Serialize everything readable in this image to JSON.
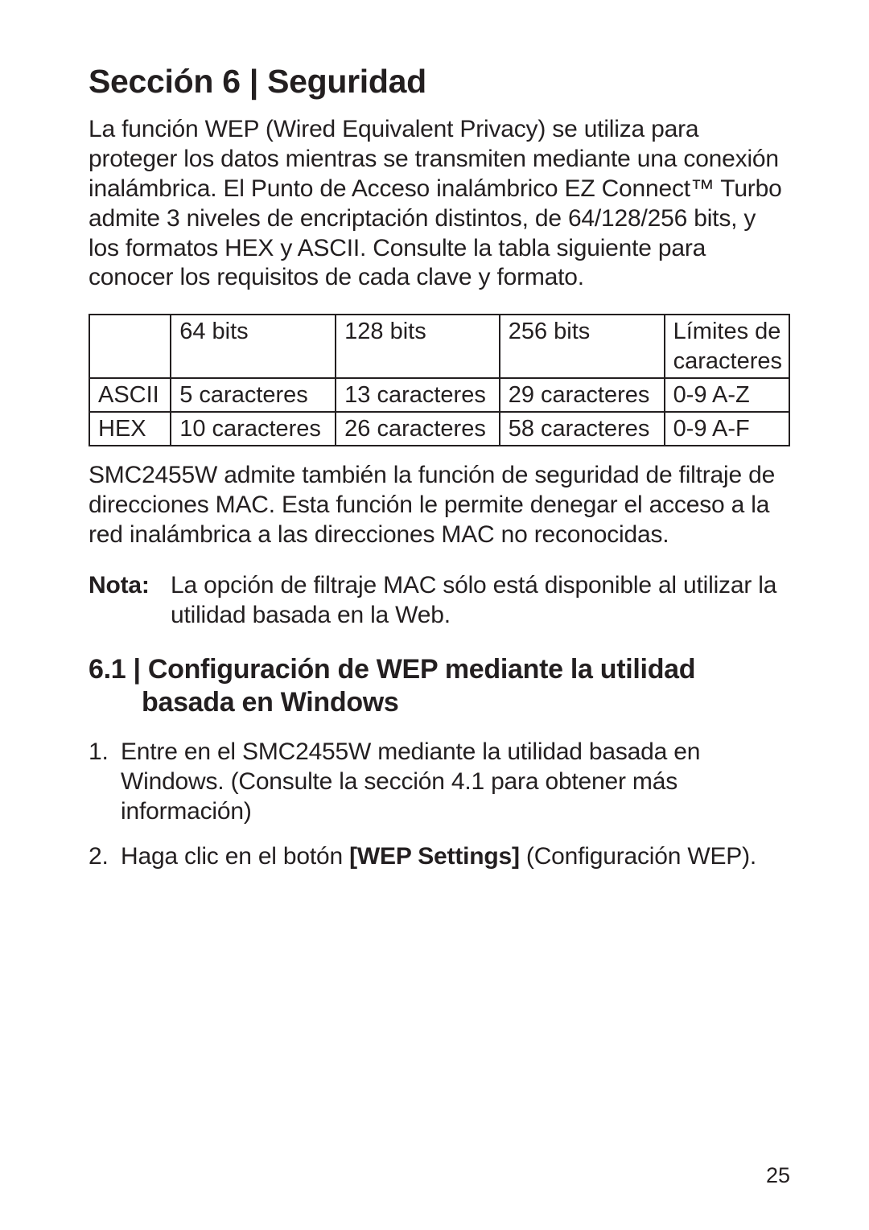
{
  "section": {
    "title": "Sección 6 | Seguridad"
  },
  "intro": "La función WEP (Wired Equivalent Privacy) se utiliza para proteger los datos mientras se transmiten mediante una conexión inalámbrica. El Punto de Acceso inalámbrico EZ Connect™ Turbo admite 3 niveles de encriptación distintos, de 64/128/256 bits, y los formatos HEX y ASCII. Consulte la tabla siguiente para conocer los requisitos de cada clave y formato.",
  "table": {
    "header": {
      "c0": "",
      "c1": "64 bits",
      "c2": "128 bits",
      "c3": "256 bits",
      "c4": "Límites de caracteres"
    },
    "rows": [
      {
        "c0": "ASCII",
        "c1": "5 caracteres",
        "c2": "13 caracteres",
        "c3": "29 caracteres",
        "c4": "0-9 A-Z"
      },
      {
        "c0": "HEX",
        "c1": "10 caracteres",
        "c2": "26 caracteres",
        "c3": "58 caracteres",
        "c4": "0-9 A-F"
      }
    ]
  },
  "after_table": "SMC2455W admite también la función de seguridad de filtraje de direcciones MAC. Esta función le permite denegar el acceso a la red inalámbrica a las direcciones MAC no reconocidas.",
  "note": {
    "label": "Nota:",
    "text": "La opción de filtraje MAC sólo está disponible al utilizar la utilidad basada en la Web."
  },
  "subsection": {
    "line1": "6.1 | Configuración de WEP mediante la utilidad",
    "line2": "basada en Windows"
  },
  "steps": [
    {
      "num": "1.",
      "text": "Entre en el SMC2455W mediante la utilidad basada en Windows. (Consulte la sección 4.1 para obtener más información)"
    },
    {
      "num": "2.",
      "pre": "Haga clic en el botón ",
      "bold": "[WEP Settings]",
      "post": " (Configuración WEP)."
    }
  ],
  "page_number": "25"
}
